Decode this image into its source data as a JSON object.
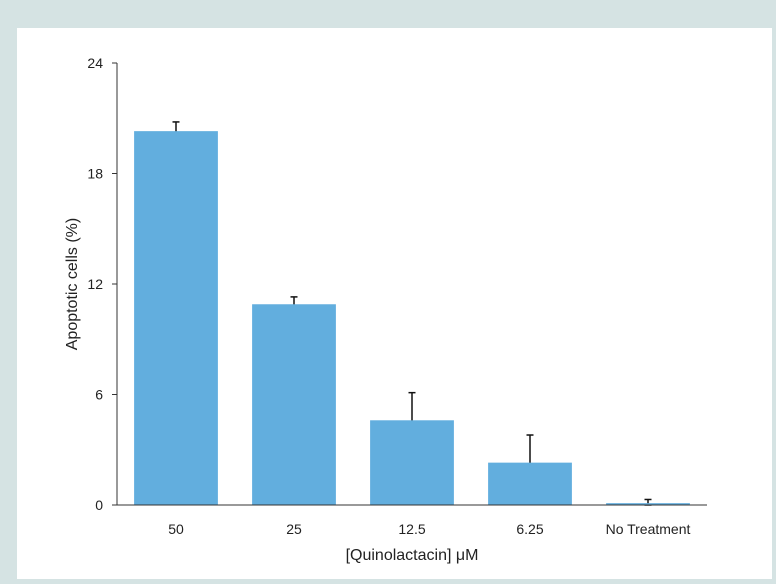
{
  "chart_data": {
    "type": "bar",
    "title": "",
    "xlabel": "[Quinolactacin] μM",
    "ylabel": "Apoptotic cells (%)",
    "categories": [
      "50",
      "25",
      "12.5",
      "6.25",
      "No Treatment"
    ],
    "values": [
      20.3,
      10.9,
      4.6,
      2.3,
      0.1
    ],
    "errors": [
      0.5,
      0.4,
      1.5,
      1.5,
      0.2
    ],
    "ylim": [
      0,
      24
    ],
    "yticks": [
      "0",
      "6",
      "12",
      "18",
      "24"
    ],
    "grid": false,
    "bar_color": "#62aede"
  }
}
